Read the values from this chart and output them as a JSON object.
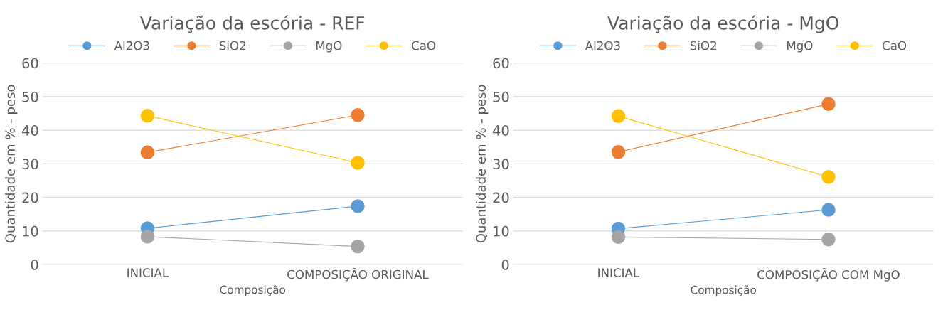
{
  "chart_data": [
    {
      "type": "line",
      "title": "Variação da escória - REF",
      "xlabel": "Composição",
      "ylabel": "Quantidade em % - peso",
      "categories": [
        "INICIAL",
        "COMPOSIÇÃO ORIGINAL"
      ],
      "ylim": [
        0,
        60
      ],
      "yticks": [
        0,
        10,
        20,
        30,
        40,
        50,
        60
      ],
      "grid": "y",
      "legend": "top",
      "marker": "circle",
      "line_style": "solid",
      "series": [
        {
          "name": "Al2O3",
          "color": "#5b9bd5",
          "values": [
            10.8,
            17.4
          ]
        },
        {
          "name": "SiO2",
          "color": "#ed7d31",
          "values": [
            33.4,
            44.5
          ]
        },
        {
          "name": "MgO",
          "color": "#a5a5a5",
          "values": [
            8.3,
            5.4
          ]
        },
        {
          "name": "CaO",
          "color": "#ffc000",
          "values": [
            44.3,
            30.3
          ]
        }
      ]
    },
    {
      "type": "line",
      "title": "Variação da escória - MgO",
      "xlabel": "Composição",
      "ylabel": "Quantidade em % - peso",
      "categories": [
        "INICIAL",
        "COMPOSIÇÃO COM MgO"
      ],
      "ylim": [
        0,
        60
      ],
      "yticks": [
        0,
        10,
        20,
        30,
        40,
        50,
        60
      ],
      "grid": "y",
      "legend": "top",
      "marker": "circle",
      "line_style": "solid",
      "series": [
        {
          "name": "Al2O3",
          "color": "#5b9bd5",
          "values": [
            10.7,
            16.3
          ]
        },
        {
          "name": "SiO2",
          "color": "#ed7d31",
          "values": [
            33.5,
            47.8
          ]
        },
        {
          "name": "MgO",
          "color": "#a5a5a5",
          "values": [
            8.2,
            7.5
          ]
        },
        {
          "name": "CaO",
          "color": "#ffc000",
          "values": [
            44.2,
            26.1
          ]
        }
      ]
    }
  ]
}
